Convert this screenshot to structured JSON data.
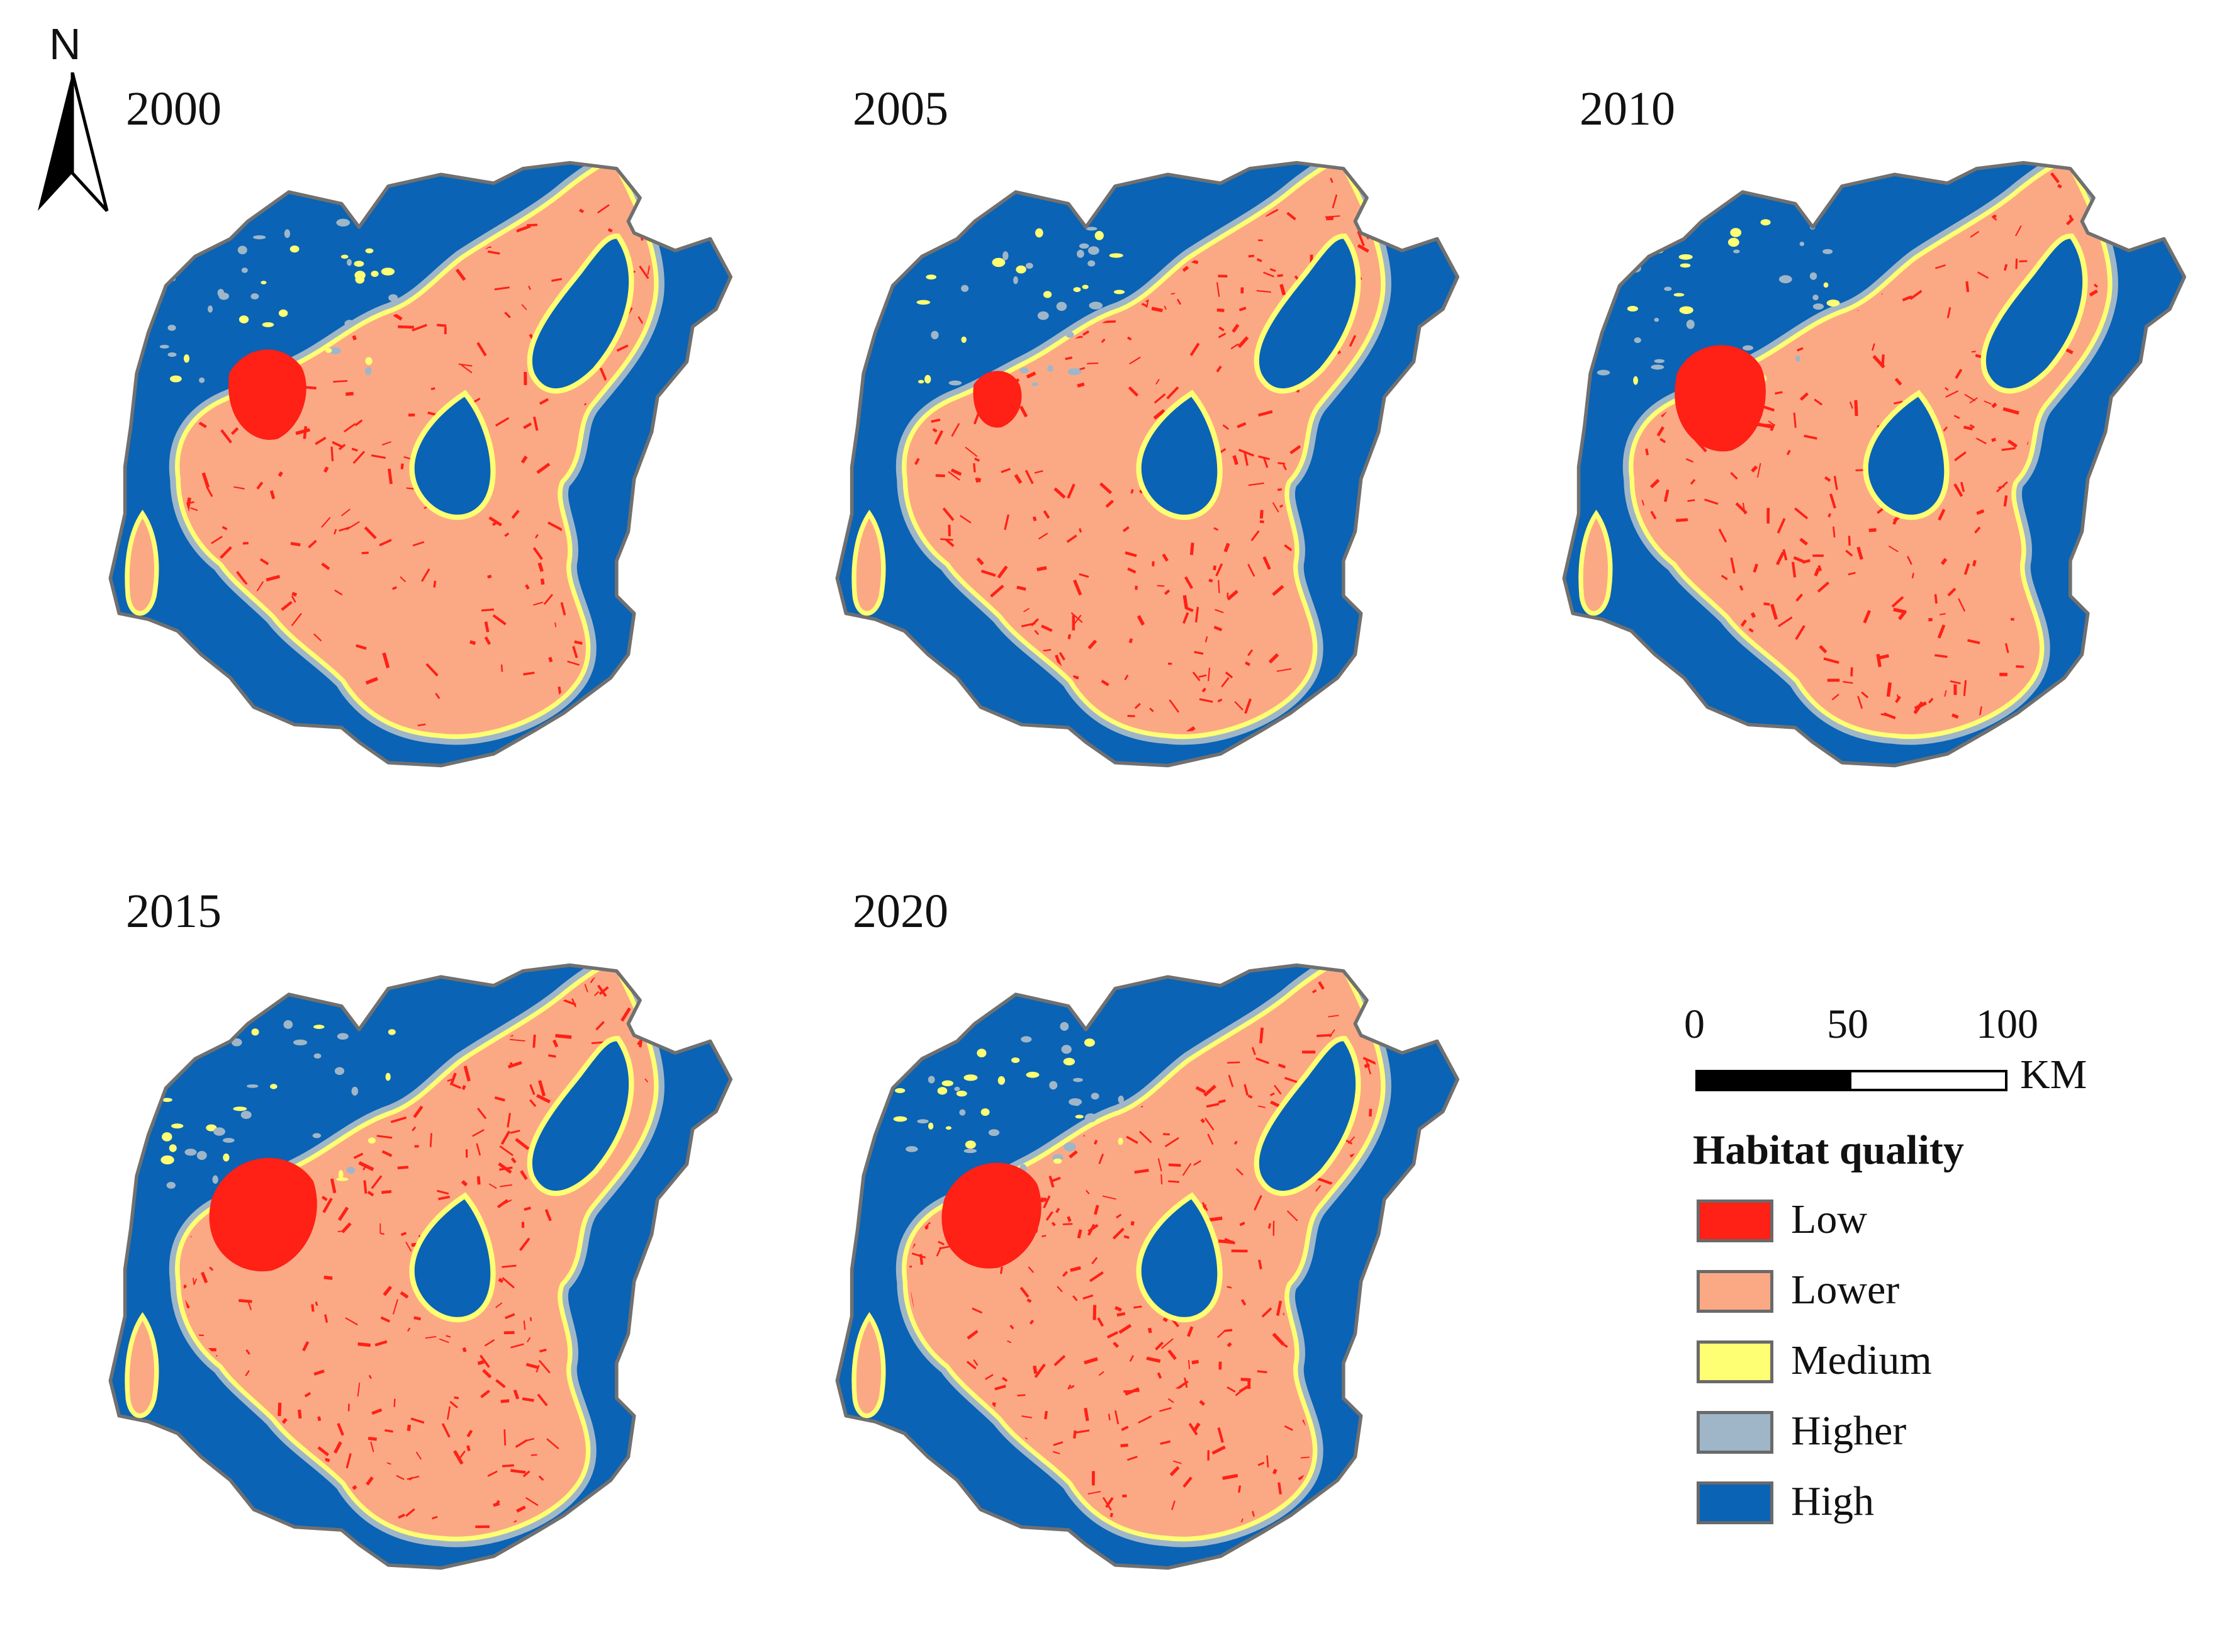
{
  "north_arrow": {
    "label": "N"
  },
  "panels": [
    {
      "year": "2000"
    },
    {
      "year": "2005"
    },
    {
      "year": "2010"
    },
    {
      "year": "2015"
    },
    {
      "year": "2020"
    }
  ],
  "scale_bar": {
    "ticks": [
      "0",
      "50",
      "100"
    ],
    "unit": "KM"
  },
  "legend": {
    "title": "Habitat quality",
    "items": [
      {
        "label": "Low",
        "color": "#ff2016"
      },
      {
        "label": "Lower",
        "color": "#fba985"
      },
      {
        "label": "Medium",
        "color": "#ffff73"
      },
      {
        "label": "Higher",
        "color": "#9fb6c8"
      },
      {
        "label": "High",
        "color": "#0a63b4"
      }
    ]
  }
}
